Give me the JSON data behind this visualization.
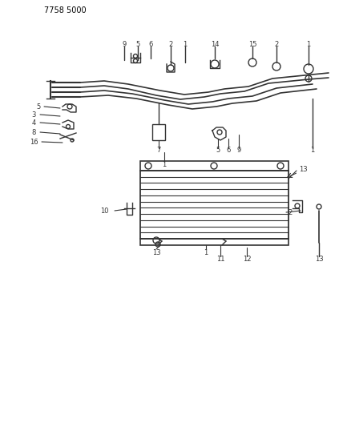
{
  "title": "7758 5000",
  "bg_color": "#ffffff",
  "line_color": "#333333",
  "figsize": [
    4.28,
    5.33
  ],
  "dpi": 100
}
